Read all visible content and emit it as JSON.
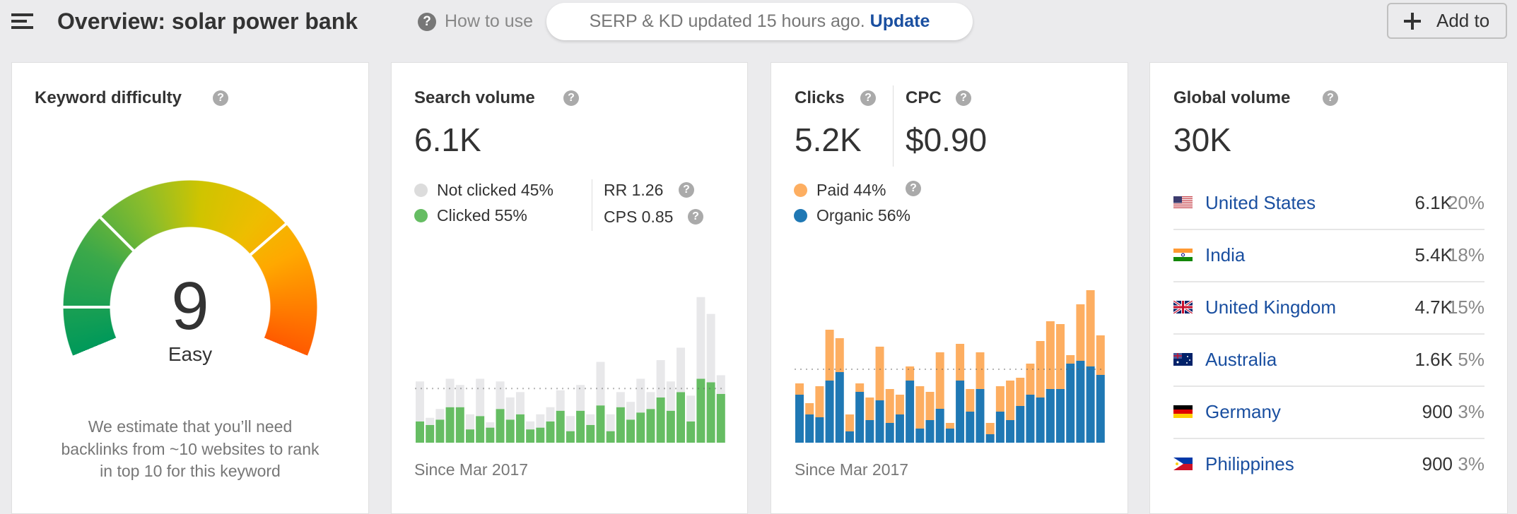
{
  "header": {
    "title": "Overview: solar power bank",
    "how_to_use": "How to use",
    "banner_text": "SERP & KD updated 15 hours ago.",
    "banner_link": "Update",
    "add_to_label": "Add to"
  },
  "keyword_difficulty": {
    "title": "Keyword difficulty",
    "value": "9",
    "score": 9,
    "label": "Easy",
    "description": [
      "We estimate that you’ll need",
      "backlinks from ~10 websites to rank",
      "in top 10 for this keyword"
    ]
  },
  "search_volume": {
    "title": "Search volume",
    "value": "6.1K",
    "legend": [
      {
        "label": "Not clicked 45%",
        "color": "#dcdcdc"
      },
      {
        "label": "Clicked 55%",
        "color": "#66bd63"
      }
    ],
    "rr": "RR 1.26",
    "cps": "CPS 0.85",
    "since": "Since Mar 2017"
  },
  "clicks": {
    "title": "Clicks",
    "value": "5.2K",
    "cpc_title": "CPC",
    "cpc_value": "$0.90",
    "legend": [
      {
        "label": "Paid 44%",
        "color": "#fdae61"
      },
      {
        "label": "Organic 56%",
        "color": "#1f78b4"
      }
    ],
    "since": "Since Mar 2017"
  },
  "global_volume": {
    "title": "Global volume",
    "value": "30K",
    "countries": [
      {
        "name": "United States",
        "volume": "6.1K",
        "share": "20%",
        "flag": "us"
      },
      {
        "name": "India",
        "volume": "5.4K",
        "share": "18%",
        "flag": "in"
      },
      {
        "name": "United Kingdom",
        "volume": "4.7K",
        "share": "15%",
        "flag": "gb"
      },
      {
        "name": "Australia",
        "volume": "1.6K",
        "share": "5%",
        "flag": "au"
      },
      {
        "name": "Germany",
        "volume": "900",
        "share": "3%",
        "flag": "de"
      },
      {
        "name": "Philippines",
        "volume": "900",
        "share": "3%",
        "flag": "ph"
      }
    ]
  },
  "chart_data": [
    {
      "type": "bar",
      "stacked": true,
      "average": 6100,
      "series": [
        {
          "name": "Clicked",
          "color": "#66bd63",
          "values": [
            2400,
            2000,
            2600,
            4000,
            4000,
            1500,
            3000,
            1700,
            3800,
            2600,
            3200,
            1500,
            1700,
            2400,
            3600,
            1300,
            3600,
            2000,
            4200,
            1300,
            4000,
            2600,
            3400,
            3800,
            5100,
            3600,
            5700,
            2400,
            7200,
            6800,
            5500
          ]
        },
        {
          "name": "Not clicked",
          "color": "#e8e8ea",
          "values": [
            4500,
            800,
            1200,
            3200,
            2500,
            1700,
            4200,
            600,
            3100,
            2500,
            2500,
            900,
            1500,
            1600,
            2300,
            1700,
            2900,
            1200,
            4900,
            1900,
            1700,
            2000,
            3800,
            1900,
            4200,
            3300,
            5000,
            2900,
            9200,
            7700,
            2100
          ]
        }
      ],
      "ylim": [
        0,
        16700
      ]
    },
    {
      "type": "bar",
      "stacked": true,
      "average": 5200,
      "series": [
        {
          "name": "Organic",
          "color": "#1f78b4",
          "values": [
            3400,
            2000,
            1800,
            4400,
            5000,
            800,
            3600,
            1600,
            3000,
            1400,
            2000,
            4400,
            1000,
            1600,
            2400,
            1000,
            4400,
            2200,
            3800,
            600,
            2200,
            1600,
            2600,
            3400,
            3200,
            3800,
            3800,
            5600,
            5800,
            5400,
            4800
          ]
        },
        {
          "name": "Paid",
          "color": "#fdae61",
          "values": [
            800,
            800,
            2200,
            3600,
            2400,
            1200,
            600,
            1600,
            3800,
            2400,
            1400,
            1000,
            3000,
            2000,
            4000,
            400,
            2600,
            1600,
            2600,
            800,
            1800,
            2800,
            2000,
            2200,
            4000,
            4800,
            4600,
            600,
            4000,
            5400,
            2800
          ]
        }
      ],
      "ylim": [
        0,
        11000
      ]
    }
  ]
}
